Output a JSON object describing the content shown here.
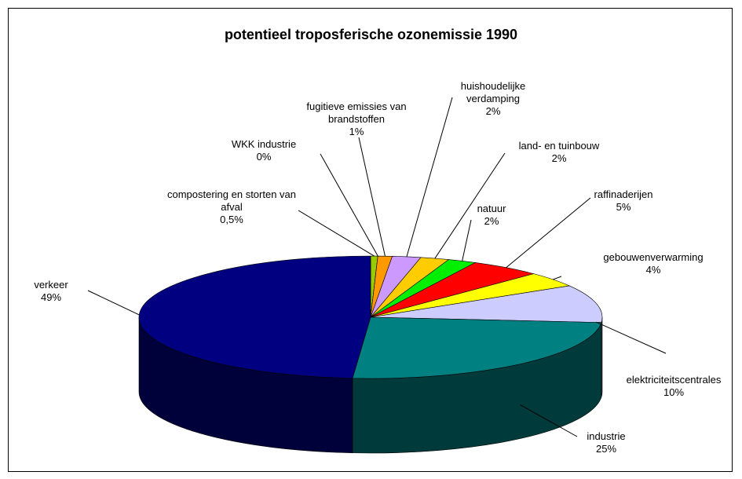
{
  "chart_data": {
    "type": "pie3d",
    "title": "potentieel troposferische ozonemissie 1990",
    "categories": [
      "compostering en storten van afval",
      "WKK industrie",
      "fugitieve emissies van brandstoffen",
      "huishoudelijke verdamping",
      "land- en tuinbouw",
      "natuur",
      "raffinaderijen",
      "gebouwenverwarming",
      "elektriciteitscentrales",
      "industrie",
      "verkeer"
    ],
    "values": [
      0.5,
      0,
      1,
      2,
      2,
      2,
      5,
      4,
      10,
      25,
      49
    ],
    "value_labels": [
      "0,5%",
      "0%",
      "1%",
      "2%",
      "2%",
      "2%",
      "5%",
      "4%",
      "10%",
      "25%",
      "49%"
    ],
    "colors": [
      "#99cc00",
      "#ffcc99",
      "#ff9900",
      "#cc99ff",
      "#ffcc00",
      "#00ee00",
      "#ff0000",
      "#ffff00",
      "#ccccff",
      "#008080",
      "#000080"
    ]
  }
}
